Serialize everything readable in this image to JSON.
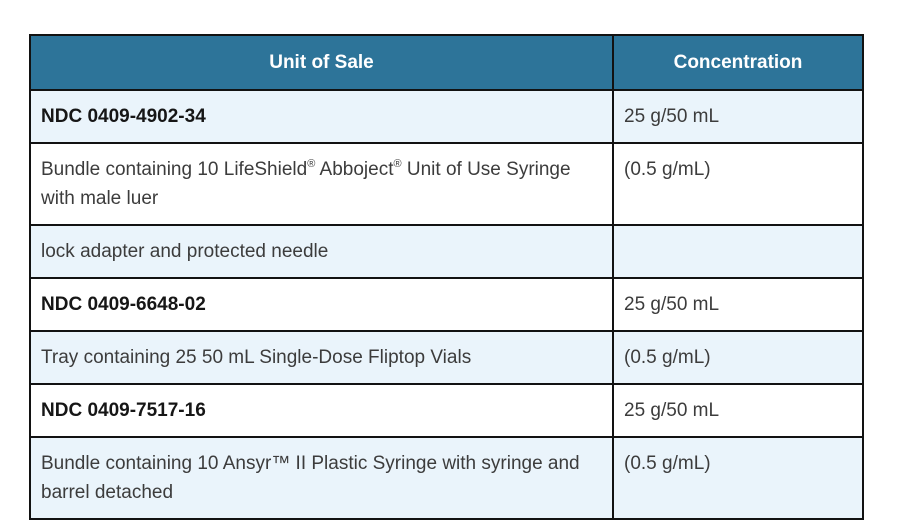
{
  "colors": {
    "header_bg": "#2d7499",
    "header_text": "#ffffff",
    "shaded_row_bg": "#eaf4fb",
    "plain_row_bg": "#ffffff",
    "border": "#121212",
    "body_text": "#3c3c3c",
    "ndc_text": "#161616"
  },
  "table": {
    "header": [
      "Unit of Sale",
      "Concentration"
    ],
    "rows": [
      {
        "ndc_row": true,
        "unit_parts": [
          {
            "t": "NDC 0409-4902-34"
          }
        ],
        "concentration": "25 g/50 mL"
      },
      {
        "ndc_row": false,
        "unit_parts": [
          {
            "t": "Bundle containing 10 LifeShield"
          },
          {
            "t": "®",
            "sup": true
          },
          {
            "t": " Abboject"
          },
          {
            "t": "®",
            "sup": true
          },
          {
            "t": " Unit of Use Syringe with male luer"
          }
        ],
        "concentration": "(0.5 g/mL)"
      },
      {
        "ndc_row": false,
        "unit_parts": [
          {
            "t": "lock adapter and protected needle"
          }
        ],
        "concentration": ""
      },
      {
        "ndc_row": true,
        "unit_parts": [
          {
            "t": "NDC 0409-6648-02"
          }
        ],
        "concentration": "25 g/50 mL"
      },
      {
        "ndc_row": false,
        "unit_parts": [
          {
            "t": "Tray containing 25 50 mL Single-Dose Fliptop Vials"
          }
        ],
        "concentration": "(0.5 g/mL)"
      },
      {
        "ndc_row": true,
        "unit_parts": [
          {
            "t": "NDC 0409-7517-16"
          }
        ],
        "concentration": "25 g/50 mL"
      },
      {
        "ndc_row": false,
        "unit_parts": [
          {
            "t": "Bundle containing 10 Ansyr™ II Plastic Syringe with syringe and barrel detached"
          }
        ],
        "concentration": "(0.5 g/mL)"
      }
    ]
  }
}
